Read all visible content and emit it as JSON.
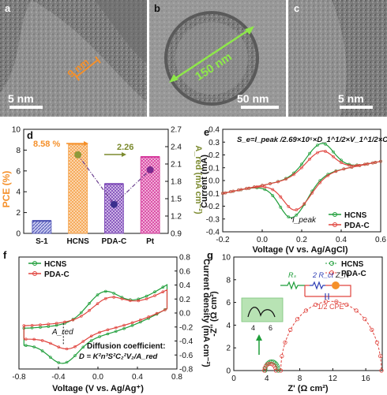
{
  "figure": {
    "panel_letters": [
      "a",
      "b",
      "c",
      "d",
      "e",
      "f",
      "g"
    ],
    "tem": {
      "a": {
        "scale": "5 nm",
        "thickness": "9 nm"
      },
      "b": {
        "scale": "50 nm",
        "diameter": "150 nm"
      },
      "c": {
        "scale": "5 nm"
      }
    }
  },
  "chart_data": [
    {
      "panel": "d",
      "type": "bar",
      "categories": [
        "S-1",
        "HCNS",
        "PDA-C",
        "Pt"
      ],
      "series": [
        {
          "values": [
            1.2,
            8.58,
            4.75,
            7.35
          ]
        },
        {
          "values": [
            null,
            2.26,
            1.4,
            2.0
          ]
        }
      ],
      "ylabel": "PCE (%)",
      "y2label": "A_red (mA cm⁻²)",
      "ylim": [
        0,
        10
      ],
      "y2lim": [
        0.9,
        2.7
      ],
      "yticks": [
        "0",
        "2",
        "4",
        "6",
        "8",
        "10"
      ],
      "y2ticks": [
        "0.9",
        "1.2",
        "1.5",
        "1.8",
        "2.1",
        "2.4",
        "2.7"
      ],
      "annotations": [
        "8.58 %",
        "2.26"
      ],
      "colors": {
        "S-1": "#4a4fb3",
        "HCNS": "#f5a14a",
        "PDA-C": "#7a46b5",
        "Pt": "#d63a9c",
        "ared_line": "#6a3e8e"
      }
    },
    {
      "panel": "e",
      "type": "line",
      "title": "S_e=I_peak /2.69×10⁵×D_1^1/2×V_1^1/2×C_1",
      "xlabel": "Voltage (V vs. Ag/AgCl)",
      "ylabel": "Current (mA)",
      "xlim": [
        -0.2,
        0.6
      ],
      "ylim": [
        -0.4,
        0.4
      ],
      "xticks": [
        "-0.2",
        "0.0",
        "0.2",
        "0.4",
        "0.6"
      ],
      "yticks": [
        "-0.4",
        "-0.3",
        "-0.2",
        "-0.1",
        "0.0",
        "0.1",
        "0.2",
        "0.3",
        "0.4"
      ],
      "legend": [
        "HCNS",
        "PDA-C"
      ],
      "legend_position": "bottom-right",
      "annotation": "I_peak",
      "series": [
        {
          "name": "HCNS",
          "color": "#1f9e3a",
          "ox_peak": [
            0.3,
            0.29
          ],
          "red_peak": [
            0.15,
            -0.29
          ],
          "ends": [
            -0.2,
            0.6
          ]
        },
        {
          "name": "PDA-C",
          "color": "#e0443e",
          "ox_peak": [
            0.3,
            0.23
          ],
          "red_peak": [
            0.17,
            -0.23
          ],
          "ends": [
            -0.2,
            0.6
          ]
        }
      ]
    },
    {
      "panel": "f",
      "type": "line",
      "xlabel": "Voltage (V vs. Ag/Ag⁺)",
      "ylabel": "Current density (mA cm⁻²)",
      "xlim": [
        -0.8,
        0.8
      ],
      "ylim": [
        -0.8,
        0.8
      ],
      "xticks": [
        "-0.8",
        "-0.4",
        "0.0",
        "0.4",
        "0.8"
      ],
      "yticks": [
        "-0.8",
        "-0.6",
        "-0.4",
        "-0.2",
        "0.0",
        "0.2",
        "0.4",
        "0.6",
        "0.8"
      ],
      "legend": [
        "HCNS",
        "PDA-C"
      ],
      "legend_position": "top-left",
      "annotation": "A_red",
      "note_title": "Diffusion coefficient:",
      "note_formula": "D = K²n³S²C₂²V₂/A_red",
      "series": [
        {
          "name": "HCNS",
          "color": "#1f9e3a"
        },
        {
          "name": "PDA-C",
          "color": "#e0443e"
        }
      ]
    },
    {
      "panel": "g",
      "type": "scatter",
      "xlabel": "Z' (Ω cm²)",
      "ylabel": "-Z'' (Ω cm²)",
      "xlim": [
        0,
        18
      ],
      "ylim": [
        0,
        10
      ],
      "xticks": [
        "0",
        "4",
        "8",
        "12",
        "16"
      ],
      "yticks": [
        "0",
        "2",
        "4",
        "6",
        "8",
        "10"
      ],
      "legend": [
        "HCNS",
        "PDA-C"
      ],
      "legend_position": "top-right",
      "circuit_labels": [
        "Rₛ",
        "2 R_ct",
        "Z_N",
        "1/2 CPE"
      ],
      "inset_ticks": [
        "4",
        "6"
      ],
      "series": [
        {
          "name": "HCNS",
          "color": "#1f9e3a",
          "center": 4.6,
          "radius": 0.8
        },
        {
          "name": "PDA-C",
          "color": "#e0443e",
          "center": 11.8,
          "radius": 6.1,
          "start": 5.0
        }
      ]
    }
  ]
}
